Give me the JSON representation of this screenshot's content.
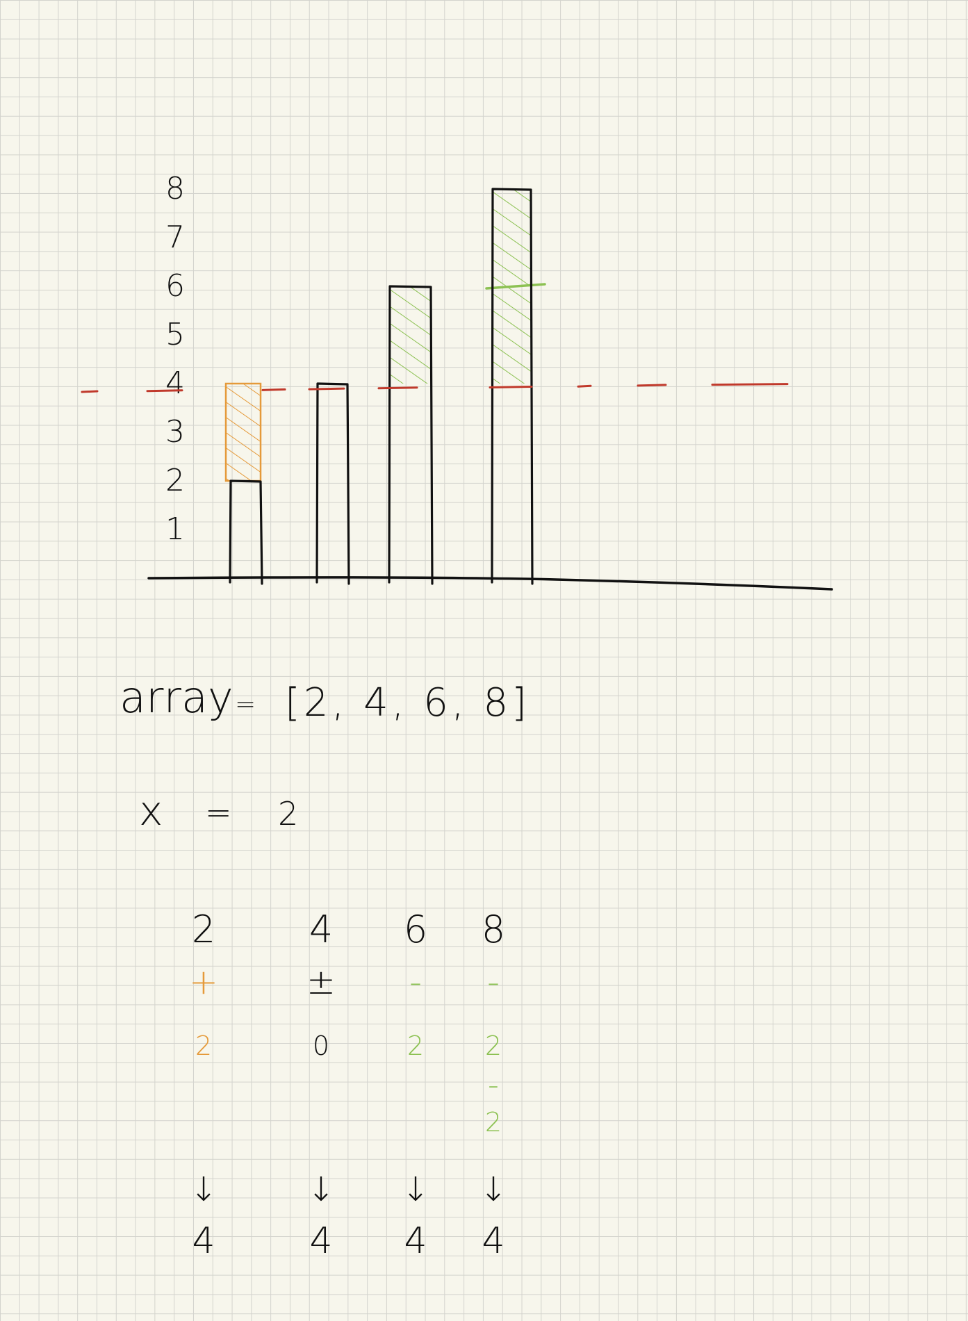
{
  "chart_data": {
    "type": "bar",
    "title": "",
    "xlabel": "",
    "ylabel": "",
    "y_ticks": [
      "1",
      "2",
      "3",
      "4",
      "5",
      "6",
      "7",
      "8"
    ],
    "ylim": [
      0,
      8.8
    ],
    "values": [
      2,
      4,
      6,
      8
    ],
    "threshold": 4,
    "fill": [
      {
        "from": 2,
        "to": 4,
        "direction": "add",
        "color": "#e59a3a"
      },
      null,
      {
        "from": 4,
        "to": 6,
        "direction": "remove",
        "color": "#8cc152"
      },
      {
        "from": 4,
        "to": 8,
        "direction": "remove",
        "color": "#8cc152",
        "marks": [
          6
        ]
      }
    ],
    "grid": true,
    "colors": {
      "bar": "#111111",
      "threshold": "#c0392b",
      "add": "#e59a3a",
      "remove": "#8cc152"
    }
  },
  "formula": {
    "array_label": "array",
    "equals": "=",
    "array_value": "[2, 4, 6, 8]",
    "x_label": "x",
    "x_value": "2"
  },
  "columns": [
    {
      "top": "2",
      "op": "+",
      "amount": "2",
      "result": "4",
      "color": "#e59a3a",
      "steps": []
    },
    {
      "top": "4",
      "op": "±",
      "amount": "0",
      "result": "4",
      "color": "#111111",
      "steps": []
    },
    {
      "top": "6",
      "op": "-",
      "amount": "2",
      "result": "4",
      "color": "#8cc152",
      "steps": []
    },
    {
      "top": "8",
      "op": "-",
      "amount": "2",
      "result": "4",
      "color": "#8cc152",
      "steps": [
        {
          "op": "-",
          "amount": "2"
        }
      ]
    }
  ],
  "arrow": "↓"
}
